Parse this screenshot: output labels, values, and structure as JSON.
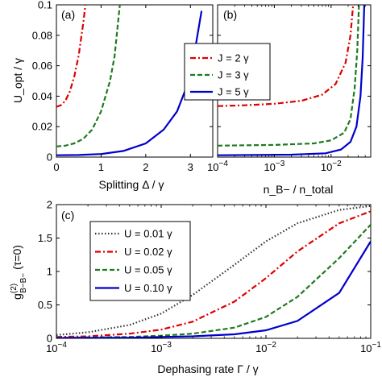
{
  "chart_data": [
    {
      "type": "line",
      "panel_label": "(a)",
      "xlabel": "Splitting  Δ / γ",
      "ylabel": "U_opt / γ",
      "xlim": [
        0,
        3.5
      ],
      "ylim": [
        0,
        0.1
      ],
      "x_scale": "linear",
      "x_ticks": [
        0,
        1,
        2,
        3
      ],
      "x_tick_labels": [
        "0",
        "1",
        "2",
        "3"
      ],
      "y_ticks": [
        0,
        0.02,
        0.04,
        0.06,
        0.08,
        0.1
      ],
      "y_tick_labels": [
        "0",
        "0.02",
        "0.04",
        "0.06",
        "0.08",
        "0.1"
      ],
      "series": [
        {
          "name": "J = 2 γ",
          "color": "#dd0000",
          "dash": "dashdot",
          "x": [
            0,
            0.1,
            0.2,
            0.3,
            0.4,
            0.5,
            0.6,
            0.65
          ],
          "y": [
            0.033,
            0.034,
            0.037,
            0.043,
            0.053,
            0.067,
            0.088,
            0.1
          ]
        },
        {
          "name": "J = 3 γ",
          "color": "#1f7a1f",
          "dash": "dashed",
          "x": [
            0,
            0.2,
            0.4,
            0.6,
            0.8,
            1.0,
            1.2,
            1.3,
            1.42
          ],
          "y": [
            0.007,
            0.0075,
            0.009,
            0.012,
            0.018,
            0.03,
            0.05,
            0.066,
            0.1
          ]
        },
        {
          "name": "J = 5 γ",
          "color": "#0000cc",
          "dash": "solid",
          "x": [
            0,
            0.5,
            1.0,
            1.5,
            2.0,
            2.4,
            2.7,
            2.9,
            3.1,
            3.25
          ],
          "y": [
            0.0012,
            0.0014,
            0.002,
            0.004,
            0.009,
            0.018,
            0.03,
            0.045,
            0.07,
            0.096
          ]
        }
      ]
    },
    {
      "type": "line",
      "panel_label": "(b)",
      "xlabel": "n_B− / n_total",
      "xlim": [
        0.0001,
        0.05
      ],
      "ylim": [
        0,
        0.1
      ],
      "x_scale": "log",
      "x_ticks": [
        0.0001,
        0.001,
        0.01
      ],
      "x_tick_labels": [
        "10",
        "10",
        "10"
      ],
      "x_tick_exponents": [
        "−4",
        "−3",
        "−2"
      ],
      "series": [
        {
          "name": "J = 2 γ",
          "color": "#dd0000",
          "dash": "dashdot",
          "x": [
            0.0001,
            0.0003,
            0.001,
            0.003,
            0.007,
            0.012,
            0.018,
            0.022,
            0.0245
          ],
          "y": [
            0.0335,
            0.034,
            0.035,
            0.037,
            0.041,
            0.048,
            0.062,
            0.08,
            0.1
          ]
        },
        {
          "name": "J = 3 γ",
          "color": "#1f7a1f",
          "dash": "dashed",
          "x": [
            0.0001,
            0.001,
            0.005,
            0.01,
            0.017,
            0.022,
            0.026,
            0.029,
            0.031
          ],
          "y": [
            0.0075,
            0.008,
            0.009,
            0.011,
            0.016,
            0.025,
            0.045,
            0.07,
            0.1
          ]
        },
        {
          "name": "J = 5 γ",
          "color": "#0000cc",
          "dash": "solid",
          "x": [
            0.0001,
            0.002,
            0.008,
            0.015,
            0.022,
            0.028,
            0.033,
            0.036,
            0.0385
          ],
          "y": [
            0.0012,
            0.0016,
            0.0025,
            0.005,
            0.01,
            0.02,
            0.04,
            0.065,
            0.1
          ]
        }
      ]
    },
    {
      "type": "line",
      "panel_label": "(c)",
      "xlabel": "Dephasing rate  Γ / γ",
      "ylabel_main": "g",
      "ylabel_sup": "(2)",
      "ylabel_sub": "B−B−",
      "ylabel_tail": "(τ=0)",
      "xlim": [
        0.0001,
        0.1
      ],
      "ylim": [
        0,
        2
      ],
      "x_scale": "log",
      "x_ticks": [
        0.0001,
        0.001,
        0.01,
        0.1
      ],
      "x_tick_labels": [
        "10",
        "10",
        "10",
        "10"
      ],
      "x_tick_exponents": [
        "−4",
        "−3",
        "−2",
        "−1"
      ],
      "y_ticks": [
        0,
        0.5,
        1,
        1.5,
        2
      ],
      "y_tick_labels": [
        "0",
        "0.5",
        "1",
        "1.5",
        "2"
      ],
      "series": [
        {
          "name": "U = 0.01 γ",
          "color": "#333333",
          "dash": "dotted",
          "x": [
            0.0001,
            0.0002,
            0.0005,
            0.001,
            0.002,
            0.005,
            0.01,
            0.02,
            0.05,
            0.1
          ],
          "y": [
            0.05,
            0.09,
            0.2,
            0.37,
            0.65,
            1.1,
            1.45,
            1.72,
            1.92,
            1.98
          ]
        },
        {
          "name": "U = 0.02 γ",
          "color": "#dd0000",
          "dash": "dashdot",
          "x": [
            0.0001,
            0.0002,
            0.0005,
            0.001,
            0.002,
            0.005,
            0.01,
            0.02,
            0.05,
            0.1
          ],
          "y": [
            0.02,
            0.03,
            0.07,
            0.13,
            0.25,
            0.55,
            0.9,
            1.3,
            1.72,
            1.9
          ]
        },
        {
          "name": "U = 0.05 γ",
          "color": "#1f7a1f",
          "dash": "dashed",
          "x": [
            0.0001,
            0.0002,
            0.0005,
            0.001,
            0.002,
            0.005,
            0.01,
            0.02,
            0.05,
            0.1
          ],
          "y": [
            0.01,
            0.015,
            0.02,
            0.04,
            0.07,
            0.16,
            0.32,
            0.62,
            1.2,
            1.7
          ]
        },
        {
          "name": "U = 0.10 γ",
          "color": "#0000cc",
          "dash": "solid",
          "x": [
            0.0001,
            0.0002,
            0.0005,
            0.001,
            0.002,
            0.005,
            0.01,
            0.02,
            0.05,
            0.1
          ],
          "y": [
            0.005,
            0.007,
            0.01,
            0.02,
            0.03,
            0.06,
            0.12,
            0.26,
            0.68,
            1.45
          ]
        }
      ]
    }
  ]
}
